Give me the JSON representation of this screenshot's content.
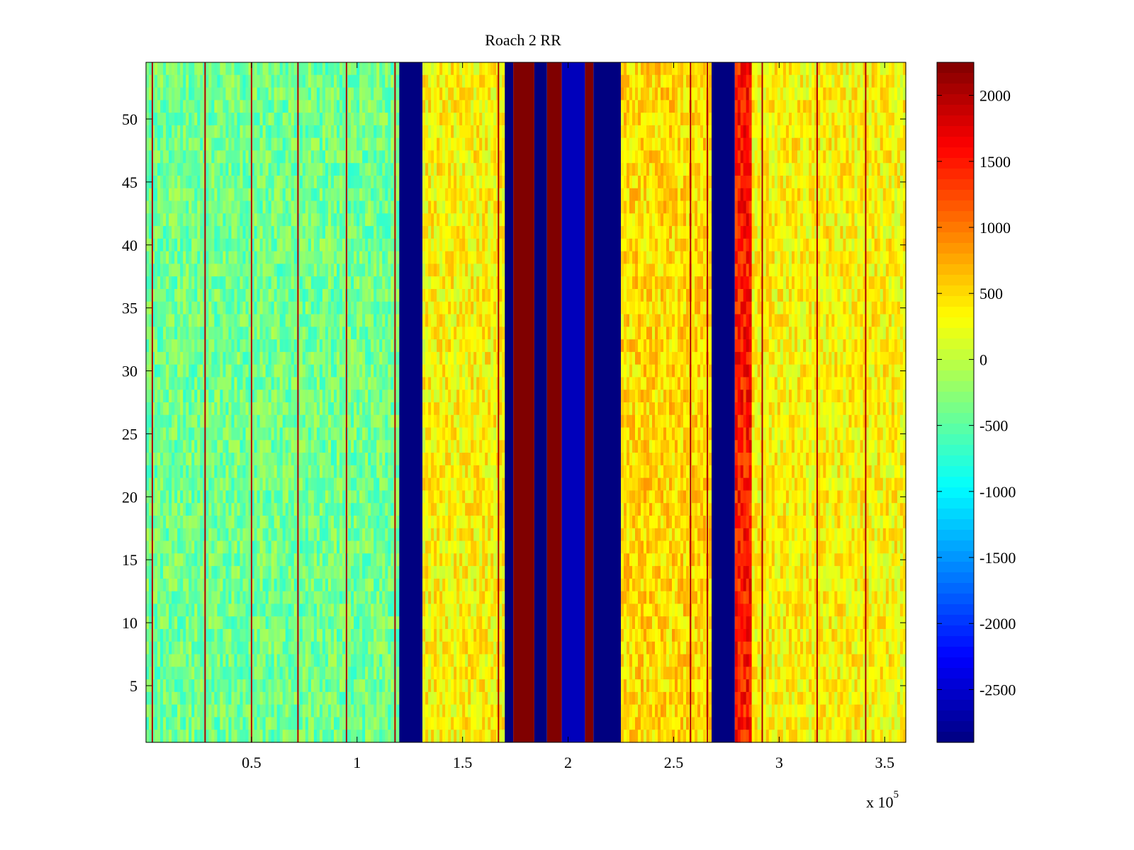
{
  "chart_data": {
    "type": "heatmap",
    "title": "Roach 2 RR",
    "xlabel": "",
    "ylabel": "",
    "x_exponent_label": "x 10",
    "x_exponent_power": "5",
    "xlim": [
      0,
      360000
    ],
    "ylim": [
      0.5,
      54.5
    ],
    "x_ticks": [
      {
        "value": 50000,
        "label": "0.5"
      },
      {
        "value": 100000,
        "label": "1"
      },
      {
        "value": 150000,
        "label": "1.5"
      },
      {
        "value": 200000,
        "label": "2"
      },
      {
        "value": 250000,
        "label": "2.5"
      },
      {
        "value": 300000,
        "label": "3"
      },
      {
        "value": 350000,
        "label": "3.5"
      }
    ],
    "y_ticks": [
      {
        "value": 5,
        "label": "5"
      },
      {
        "value": 10,
        "label": "10"
      },
      {
        "value": 15,
        "label": "15"
      },
      {
        "value": 20,
        "label": "20"
      },
      {
        "value": 25,
        "label": "25"
      },
      {
        "value": 30,
        "label": "30"
      },
      {
        "value": 35,
        "label": "35"
      },
      {
        "value": 40,
        "label": "40"
      },
      {
        "value": 45,
        "label": "45"
      },
      {
        "value": 50,
        "label": "50"
      }
    ],
    "colorbar": {
      "colormap": "jet",
      "clim": [
        -2900,
        2250
      ],
      "ticks": [
        {
          "value": 2000,
          "label": "2000"
        },
        {
          "value": 1500,
          "label": "1500"
        },
        {
          "value": 1000,
          "label": "1000"
        },
        {
          "value": 500,
          "label": "500"
        },
        {
          "value": 0,
          "label": "0"
        },
        {
          "value": -500,
          "label": "-500"
        },
        {
          "value": -1000,
          "label": "-1000"
        },
        {
          "value": -1500,
          "label": "-1500"
        },
        {
          "value": -2000,
          "label": "-2000"
        },
        {
          "value": -2500,
          "label": "-2500"
        }
      ]
    },
    "bands": [
      {
        "x0": 0,
        "x1": 120000,
        "value": -400
      },
      {
        "x0": 120000,
        "x1": 131000,
        "value": -2900
      },
      {
        "x0": 131000,
        "x1": 170000,
        "value": 350
      },
      {
        "x0": 170000,
        "x1": 174000,
        "value": -2900
      },
      {
        "x0": 174000,
        "x1": 184000,
        "value": 2250
      },
      {
        "x0": 184000,
        "x1": 190000,
        "value": -2900
      },
      {
        "x0": 190000,
        "x1": 197000,
        "value": 2250
      },
      {
        "x0": 197000,
        "x1": 208000,
        "value": -2600
      },
      {
        "x0": 208000,
        "x1": 212000,
        "value": 2250
      },
      {
        "x0": 212000,
        "x1": 225000,
        "value": -2900
      },
      {
        "x0": 225000,
        "x1": 268000,
        "value": 500
      },
      {
        "x0": 268000,
        "x1": 279000,
        "value": -2900
      },
      {
        "x0": 279000,
        "x1": 287000,
        "value": 1500
      },
      {
        "x0": 287000,
        "x1": 360000,
        "value": 350
      }
    ],
    "spike_lines_x": [
      3000,
      28000,
      50000,
      72000,
      95000,
      118000,
      167000,
      258000,
      266000,
      292000,
      318000,
      341000
    ],
    "colors": {
      "background": "#ffffff",
      "axis": "#000000"
    }
  }
}
